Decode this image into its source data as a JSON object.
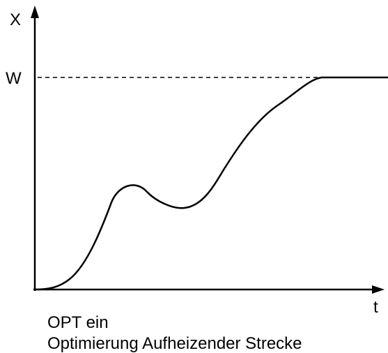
{
  "axes": {
    "y_label": "X",
    "setpoint_label": "W",
    "x_label": "t"
  },
  "caption": {
    "line1": "OPT ein",
    "line2": "Optimierung Aufheizender Strecke"
  }
}
